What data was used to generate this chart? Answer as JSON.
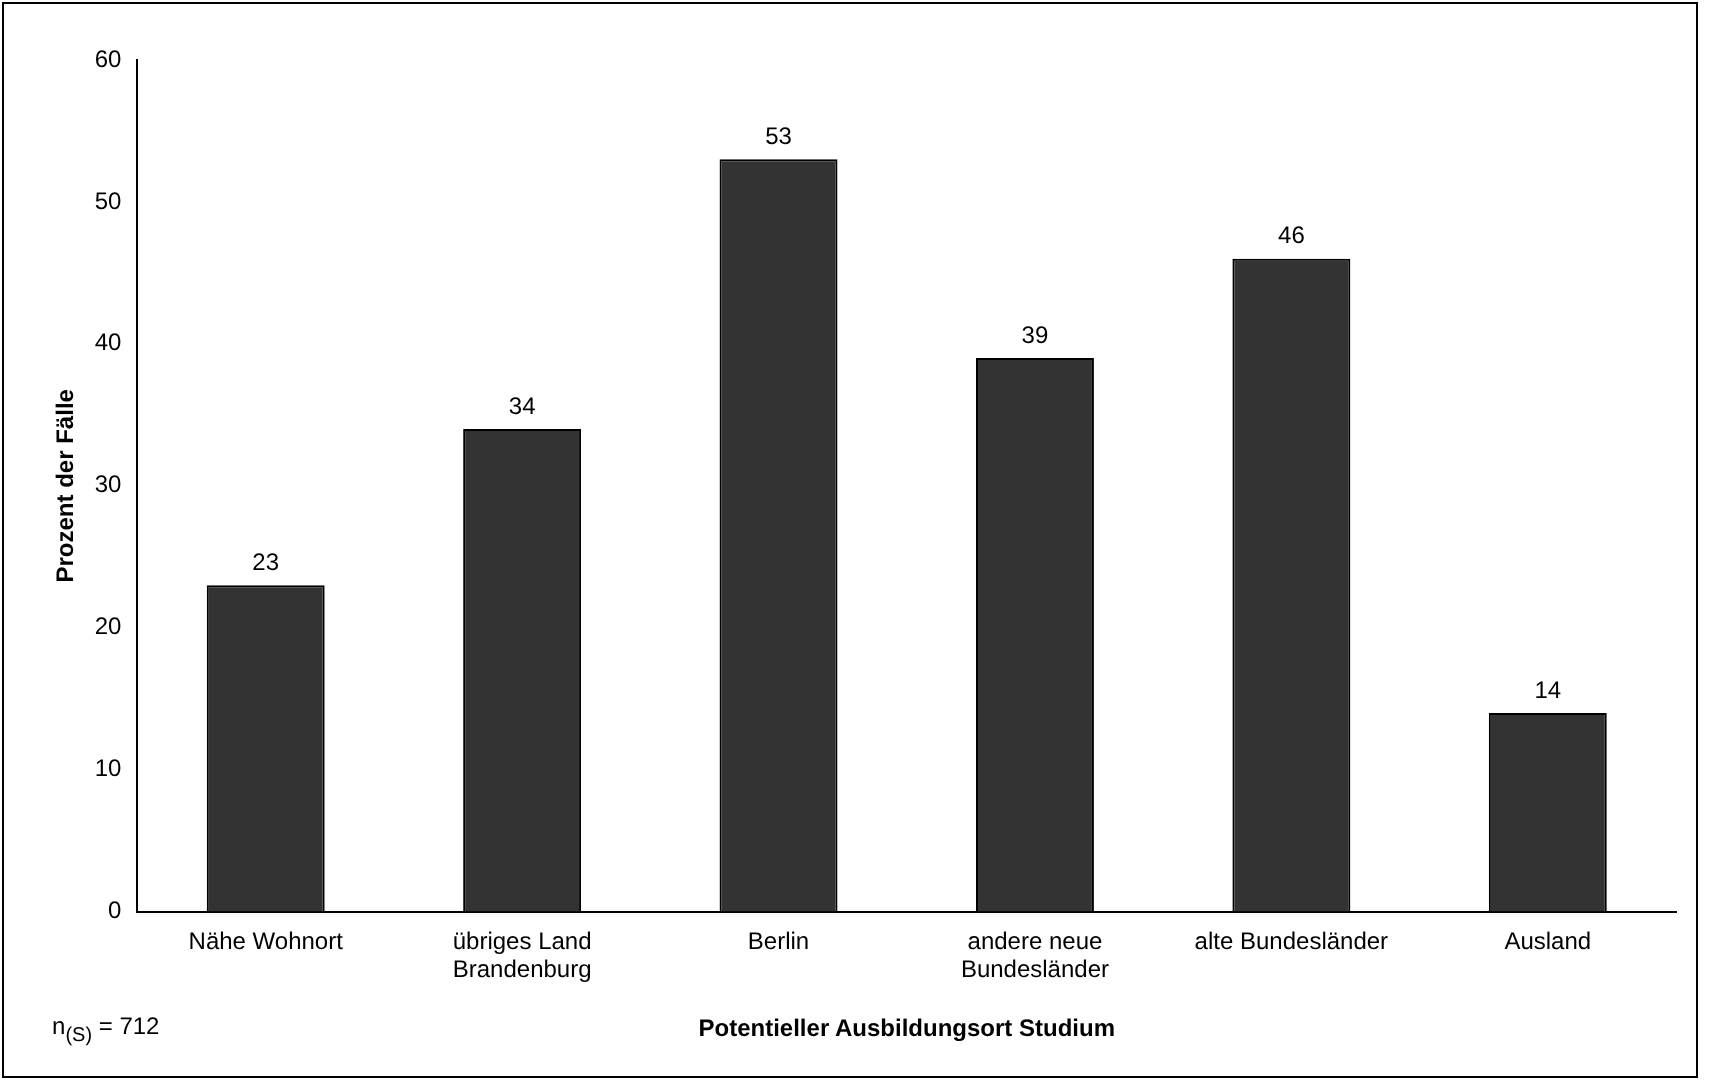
{
  "chart_data": {
    "type": "bar",
    "xlabel": "Potentieller Ausbildungsort Studium",
    "ylabel": "Prozent der Fälle",
    "categories": [
      "Nähe Wohnort",
      "übriges Land Brandenburg",
      "Berlin",
      "andere neue Bundesländer",
      "alte Bundesländer",
      "Ausland"
    ],
    "values": [
      23,
      34,
      53,
      39,
      46,
      14
    ],
    "color": "#333333",
    "ylim": [
      0,
      60
    ],
    "yticks": [
      0,
      10,
      20,
      30,
      40,
      50,
      60
    ],
    "grid": false,
    "legend": false,
    "data_labels": true,
    "annotations": [
      "n$_{(S)}$ = 712"
    ]
  }
}
